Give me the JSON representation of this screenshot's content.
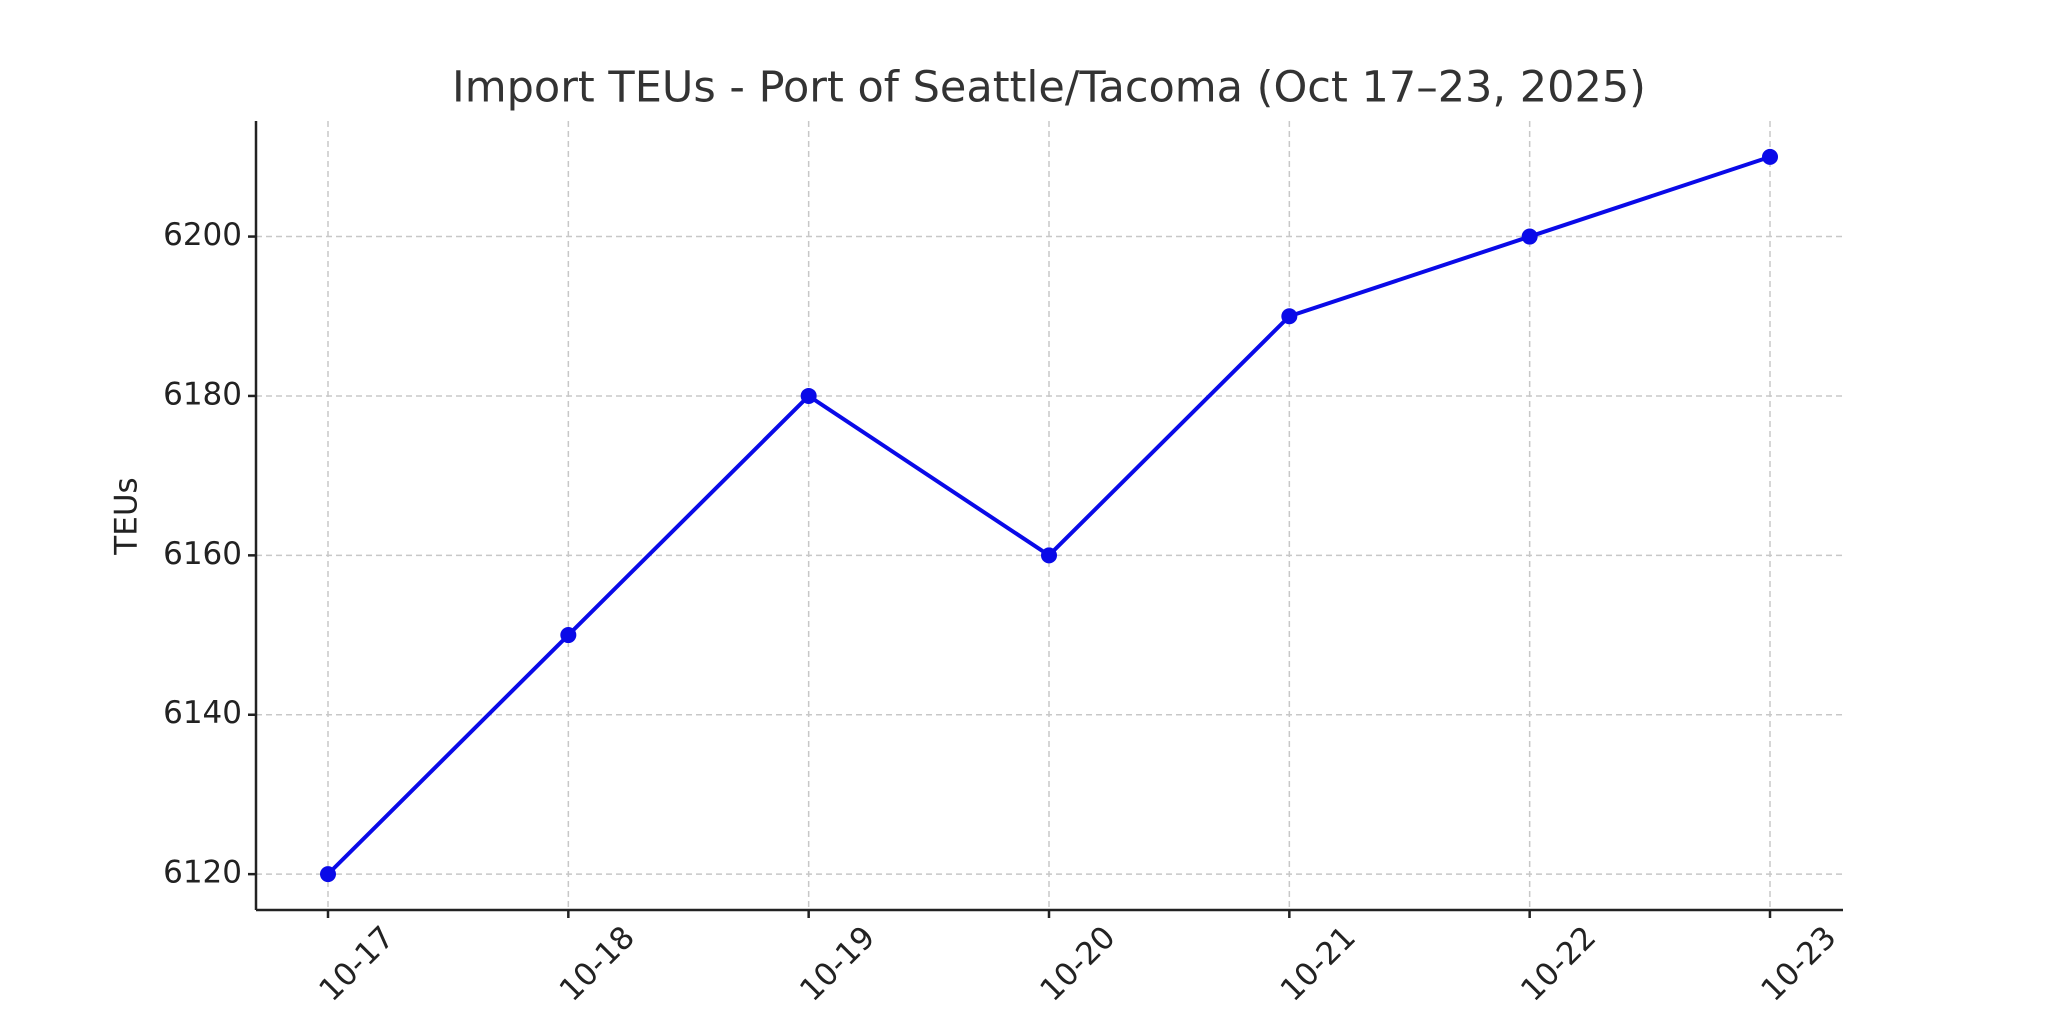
{
  "chart_data": {
    "type": "line",
    "title": "Import TEUs - Port of Seattle/Tacoma (Oct 17–23, 2025)",
    "y_label": "TEUs",
    "categories": [
      "10-17",
      "10-18",
      "10-19",
      "10-20",
      "10-21",
      "10-22",
      "10-23"
    ],
    "values": [
      6120,
      6150,
      6180,
      6160,
      6190,
      6200,
      6210
    ],
    "color": "#0a0ae8",
    "ylim": [
      6115.5,
      6214.5
    ],
    "yticks": [
      6120,
      6140,
      6160,
      6180,
      6200
    ],
    "grid": true
  }
}
